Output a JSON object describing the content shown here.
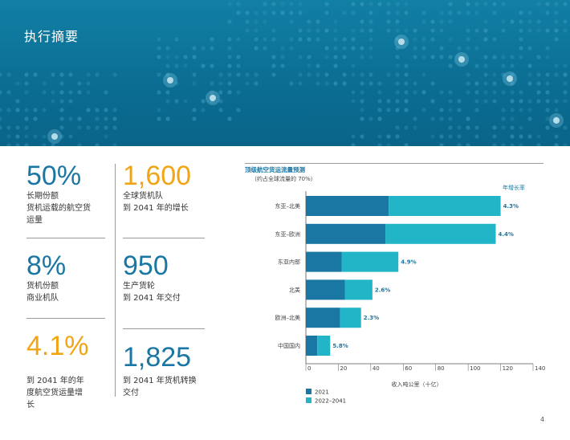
{
  "header": {
    "title": "执行摘要"
  },
  "stats": {
    "s1": {
      "value": "50%",
      "lines": [
        "长期份额",
        "货机运载的航空货",
        "运量"
      ]
    },
    "s2": {
      "value": "1,600",
      "lines": [
        "全球货机队",
        "到 2041 年的增长"
      ]
    },
    "s3": {
      "value": "8%",
      "lines": [
        "货机份额",
        "商业机队"
      ]
    },
    "s4": {
      "value": "950",
      "lines": [
        "生产货轮",
        "到 2041 年交付"
      ]
    },
    "s5": {
      "value": "4.1%",
      "lines": [
        "到 2041 年的年",
        "度航空货运量增",
        "长"
      ]
    },
    "s6": {
      "value": "1,825",
      "lines": [
        "到 2041 年货机转换",
        "交付"
      ]
    }
  },
  "colors": {
    "dark": "#1a76a2",
    "light": "#22b5c8",
    "orange": "#f0a516"
  },
  "chart_data": {
    "type": "bar",
    "orientation": "horizontal",
    "stacked": true,
    "title": "顶级航空货运流量预测",
    "subtitle": "（约占全球流量的 70%）",
    "growth_header": "年增长率",
    "xlabel": "收入吨公里（十亿）",
    "xlim": [
      0,
      140
    ],
    "xticks": [
      0,
      20,
      40,
      60,
      80,
      100,
      120,
      140
    ],
    "categories": [
      "东亚–北美",
      "东亚–欧洲",
      "东亚内部",
      "北美",
      "欧洲–北美",
      "中国国内"
    ],
    "series": [
      {
        "name": "2021",
        "color": "#1a76a2",
        "values": [
          51,
          49,
          22,
          24,
          21,
          7
        ]
      },
      {
        "name": "2022–2041",
        "color": "#22b5c8",
        "values": [
          69,
          68,
          35,
          17,
          13,
          8
        ]
      }
    ],
    "growth_rates": [
      "4.3%",
      "4.4%",
      "4.9%",
      "2.6%",
      "2.3%",
      "5.8%"
    ]
  },
  "page_number": "4"
}
